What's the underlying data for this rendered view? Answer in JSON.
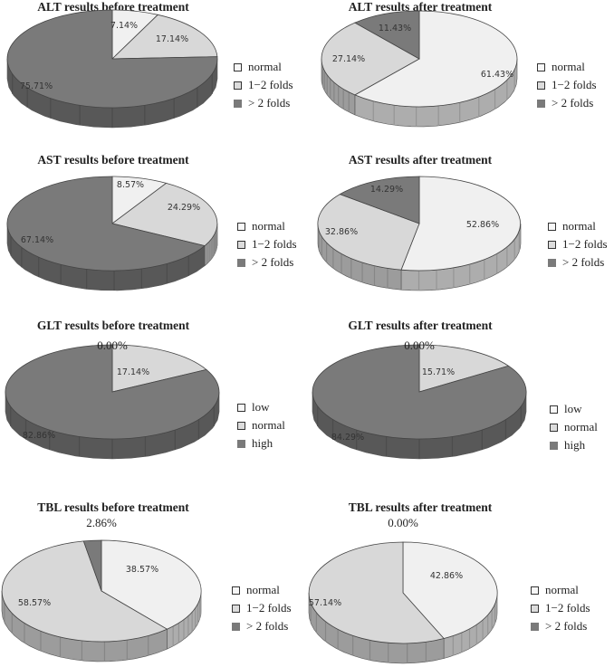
{
  "chart_data": [
    {
      "type": "pie",
      "title": "ALT results before treatment",
      "slices": [
        {
          "label": "normal",
          "value": 7.14,
          "display": "7.14%",
          "color": "#f0f0f0"
        },
        {
          "label": "1−2 folds",
          "value": 17.14,
          "display": "17.14%",
          "color": "#d8d8d8"
        },
        {
          "label": "> 2 folds",
          "value": 75.71,
          "display": "75.71%",
          "color": "#7a7a7a"
        }
      ],
      "legend": [
        "normal",
        "1−2 folds",
        "> 2 folds"
      ],
      "legend_position": "right"
    },
    {
      "type": "pie",
      "title": "ALT results after treatment",
      "slices": [
        {
          "label": "normal",
          "value": 61.43,
          "display": "61.43%",
          "color": "#f0f0f0"
        },
        {
          "label": "1−2 folds",
          "value": 27.14,
          "display": "27.14%",
          "color": "#d8d8d8"
        },
        {
          "label": "> 2 folds",
          "value": 11.43,
          "display": "11.43%",
          "color": "#7a7a7a"
        }
      ],
      "legend": [
        "normal",
        "1−2 folds",
        "> 2 folds"
      ],
      "legend_position": "right"
    },
    {
      "type": "pie",
      "title": "AST results before treatment",
      "slices": [
        {
          "label": "normal",
          "value": 8.57,
          "display": "8.57%",
          "color": "#f0f0f0"
        },
        {
          "label": "1−2 folds",
          "value": 24.29,
          "display": "24.29%",
          "color": "#d8d8d8"
        },
        {
          "label": "> 2 folds",
          "value": 67.14,
          "display": "67.14%",
          "color": "#7a7a7a"
        }
      ],
      "legend": [
        "normal",
        "1−2 folds",
        "> 2 folds"
      ],
      "legend_position": "right"
    },
    {
      "type": "pie",
      "title": "AST results after treatment",
      "slices": [
        {
          "label": "normal",
          "value": 52.86,
          "display": "52.86%",
          "color": "#f0f0f0"
        },
        {
          "label": "1−2 folds",
          "value": 32.86,
          "display": "32.86%",
          "color": "#d8d8d8"
        },
        {
          "label": "> 2 folds",
          "value": 14.29,
          "display": "14.29%",
          "color": "#7a7a7a"
        }
      ],
      "legend": [
        "normal",
        "1−2 folds",
        "> 2 folds"
      ],
      "legend_position": "right"
    },
    {
      "type": "pie",
      "title": "GLT results before treatment",
      "slices": [
        {
          "label": "low",
          "value": 0.0,
          "display": "0.00%",
          "color": "#f0f0f0"
        },
        {
          "label": "normal",
          "value": 17.14,
          "display": "17.14%",
          "color": "#d8d8d8"
        },
        {
          "label": "high",
          "value": 82.86,
          "display": "82.86%",
          "color": "#7a7a7a"
        }
      ],
      "legend": [
        "low",
        "normal",
        "high"
      ],
      "legend_position": "right"
    },
    {
      "type": "pie",
      "title": "GLT results after treatment",
      "slices": [
        {
          "label": "low",
          "value": 0.0,
          "display": "0.00%",
          "color": "#f0f0f0"
        },
        {
          "label": "normal",
          "value": 15.71,
          "display": "15.71%",
          "color": "#d8d8d8"
        },
        {
          "label": "high",
          "value": 84.29,
          "display": "84.29%",
          "color": "#7a7a7a"
        }
      ],
      "legend": [
        "low",
        "normal",
        "high"
      ],
      "legend_position": "right"
    },
    {
      "type": "pie",
      "title": "TBL results before treatment",
      "slices": [
        {
          "label": "normal",
          "value": 38.57,
          "display": "38.57%",
          "color": "#f0f0f0"
        },
        {
          "label": "1−2 folds",
          "value": 58.57,
          "display": "58.57%",
          "color": "#d8d8d8"
        },
        {
          "label": "> 2 folds",
          "value": 2.86,
          "display": "2.86%",
          "color": "#7a7a7a"
        }
      ],
      "legend": [
        "normal",
        "1−2 folds",
        "> 2 folds"
      ],
      "legend_position": "right"
    },
    {
      "type": "pie",
      "title": "TBL results after treatment",
      "slices": [
        {
          "label": "normal",
          "value": 42.86,
          "display": "42.86%",
          "color": "#f0f0f0"
        },
        {
          "label": "1−2 folds",
          "value": 57.14,
          "display": "57.14%",
          "color": "#d8d8d8"
        },
        {
          "label": "> 2 folds",
          "value": 0.0,
          "display": "0.00%",
          "color": "#7a7a7a"
        }
      ],
      "legend": [
        "normal",
        "1−2 folds",
        "> 2 folds"
      ],
      "legend_position": "right"
    }
  ]
}
